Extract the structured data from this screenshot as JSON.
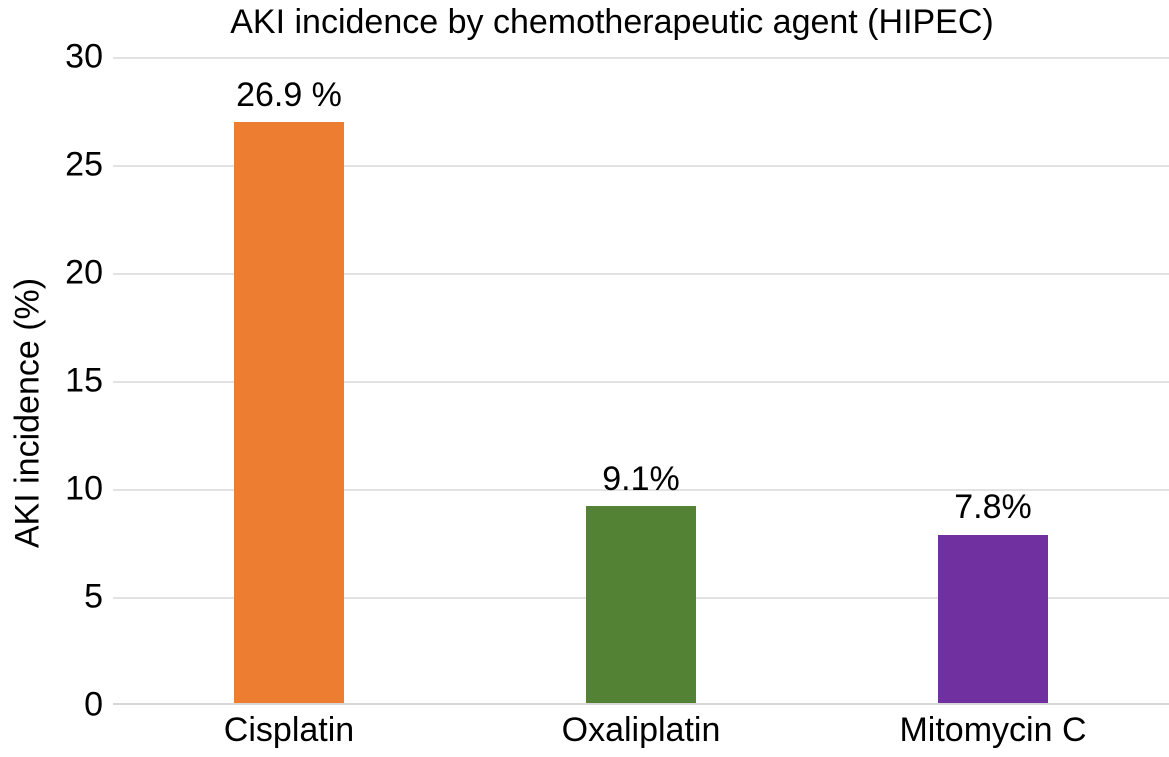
{
  "chart_data": {
    "type": "bar",
    "title": "AKI incidence by chemotherapeutic agent (HIPEC)",
    "xlabel": "",
    "ylabel": "AKI incidence (%)",
    "categories": [
      "Cisplatin",
      "Oxaliplatin",
      "Mitomycin C"
    ],
    "values": [
      26.9,
      9.1,
      7.8
    ],
    "value_labels": [
      "26.9 %",
      "9.1%",
      "7.8%"
    ],
    "bar_colors": [
      "#ED7D31",
      "#548235",
      "#7030A0"
    ],
    "ylim": [
      0,
      30
    ],
    "yticks": [
      0,
      5,
      10,
      15,
      20,
      25,
      30
    ],
    "grid": "horizontal",
    "legend": "none",
    "gridline_color": "#e2e2e2",
    "axis_line_color": "#d6d6d6",
    "text_color": "#000000",
    "background_color": "#ffffff"
  }
}
